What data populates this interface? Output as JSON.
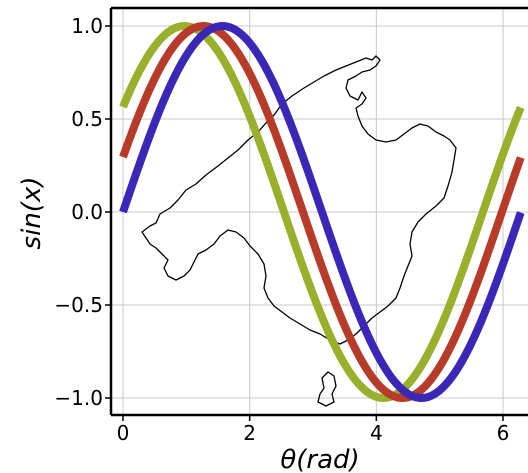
{
  "chart_data": {
    "type": "line",
    "title": "",
    "xlabel": "θ(rad)",
    "ylabel": "sin(x)",
    "xlim": [
      -0.2,
      6.35
    ],
    "ylim": [
      -1.1,
      1.1
    ],
    "grid": true,
    "legend": "none",
    "x_ticks": [
      0,
      2,
      4,
      6
    ],
    "x_tick_labels": [
      "0",
      "2",
      "4",
      "6"
    ],
    "y_ticks": [
      1.0,
      0.5,
      0.0,
      -0.5,
      -1.0
    ],
    "y_tick_labels": [
      "1.0",
      "0.5",
      "0.0",
      "−0.5",
      "−1.0"
    ],
    "series": [
      {
        "color": "#98b02c",
        "phase": 0.6,
        "x": [
          0,
          0.5,
          1.0,
          1.5,
          2.0,
          2.5,
          3.0,
          3.5,
          4.0,
          4.5,
          5.0,
          5.5,
          6.0,
          6.28
        ],
        "y": [
          0.56,
          0.89,
          1.0,
          0.86,
          0.48,
          -0.03,
          -0.52,
          -0.88,
          -1.0,
          -0.85,
          -0.46,
          0.05,
          0.53,
          0.58
        ]
      },
      {
        "color": "#b83a28",
        "phase": 0.3,
        "x": [
          0,
          0.5,
          1.0,
          1.5,
          2.0,
          2.5,
          3.0,
          3.5,
          4.0,
          4.5,
          5.0,
          5.5,
          6.0,
          6.28
        ],
        "y": [
          0.3,
          0.72,
          0.96,
          0.98,
          0.76,
          0.35,
          -0.15,
          -0.62,
          -0.94,
          -0.99,
          -0.78,
          -0.39,
          0.1,
          0.3
        ]
      },
      {
        "color": "#3a27b8",
        "phase": 0.0,
        "x": [
          0,
          0.5,
          1.0,
          1.5,
          2.0,
          2.5,
          3.0,
          3.5,
          4.0,
          4.5,
          5.0,
          5.5,
          6.0,
          6.28
        ],
        "y": [
          0.0,
          0.48,
          0.84,
          1.0,
          0.91,
          0.6,
          0.14,
          -0.35,
          -0.76,
          -0.98,
          -0.96,
          -0.71,
          -0.28,
          0.0
        ]
      }
    ]
  },
  "background_image": "island-outline"
}
